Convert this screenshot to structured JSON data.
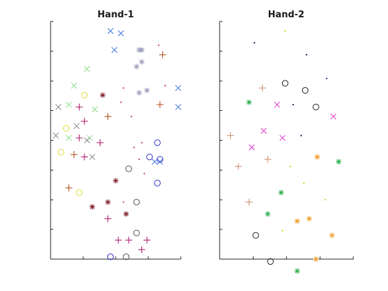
{
  "chart_data": [
    {
      "type": "scatter",
      "title": "Hand-1",
      "xlabel": "",
      "ylabel": "",
      "xlim": [
        0,
        10
      ],
      "ylim": [
        0,
        10
      ],
      "grid": false,
      "series": [
        {
          "marker": "x",
          "color": "#4477dd",
          "points": [
            [
              4.6,
              9.6
            ],
            [
              5.4,
              9.5
            ],
            [
              4.9,
              8.8
            ],
            [
              9.8,
              7.2
            ],
            [
              9.8,
              6.4
            ],
            [
              8.0,
              4.1
            ],
            [
              8.4,
              4.1
            ]
          ]
        },
        {
          "marker": "*",
          "color": "#9999bb",
          "points": [
            [
              6.8,
              8.8
            ],
            [
              7.0,
              8.8
            ],
            [
              6.6,
              8.1
            ],
            [
              7.0,
              8.3
            ],
            [
              6.8,
              7.0
            ],
            [
              7.4,
              7.1
            ]
          ]
        },
        {
          "marker": "*",
          "color": "#7a1020",
          "points": [
            [
              4.0,
              6.9
            ],
            [
              5.0,
              3.3
            ],
            [
              4.4,
              2.4
            ],
            [
              5.8,
              1.9
            ],
            [
              3.2,
              2.2
            ]
          ]
        },
        {
          "marker": "x",
          "color": "#88dd88",
          "points": [
            [
              2.8,
              8.0
            ],
            [
              1.8,
              7.3
            ],
            [
              1.4,
              6.5
            ],
            [
              3.4,
              6.3
            ],
            [
              1.4,
              5.1
            ],
            [
              3.0,
              5.1
            ]
          ]
        },
        {
          "marker": "x",
          "color": "#888888",
          "points": [
            [
              0.6,
              6.4
            ],
            [
              2.0,
              5.6
            ],
            [
              0.4,
              5.2
            ],
            [
              2.8,
              5.0
            ],
            [
              3.2,
              4.3
            ]
          ]
        },
        {
          "marker": "+",
          "color": "#aa1166",
          "points": [
            [
              2.2,
              6.4
            ],
            [
              2.6,
              5.8
            ],
            [
              2.2,
              5.1
            ],
            [
              3.8,
              4.9
            ],
            [
              2.6,
              4.3
            ],
            [
              4.4,
              1.7
            ],
            [
              5.2,
              0.8
            ],
            [
              6.0,
              0.8
            ],
            [
              7.4,
              0.8
            ],
            [
              7.0,
              0.4
            ]
          ]
        },
        {
          "marker": "+",
          "color": "#aa4411",
          "points": [
            [
              8.6,
              8.6
            ],
            [
              8.4,
              6.5
            ],
            [
              4.4,
              6.0
            ],
            [
              1.8,
              4.4
            ],
            [
              1.4,
              3.0
            ]
          ]
        },
        {
          "marker": "o",
          "color": "#dddd33",
          "points": [
            [
              2.6,
              6.9
            ],
            [
              1.2,
              5.5
            ],
            [
              0.8,
              4.5
            ],
            [
              2.2,
              2.8
            ]
          ]
        },
        {
          "marker": "o",
          "color": "#3333cc",
          "points": [
            [
              8.2,
              4.9
            ],
            [
              7.6,
              4.3
            ],
            [
              8.4,
              4.2
            ],
            [
              8.2,
              3.2
            ],
            [
              4.6,
              0.1
            ]
          ]
        },
        {
          "marker": "o",
          "color": "#555555",
          "points": [
            [
              6.0,
              3.8
            ],
            [
              6.6,
              2.4
            ],
            [
              6.6,
              1.1
            ],
            [
              5.8,
              0.1
            ]
          ]
        },
        {
          "marker": ".",
          "color": "#cc3366",
          "points": [
            [
              5.6,
              7.2
            ],
            [
              5.4,
              6.6
            ],
            [
              6.2,
              6.0
            ],
            [
              6.4,
              4.7
            ],
            [
              7.0,
              4.9
            ],
            [
              6.8,
              4.2
            ],
            [
              7.2,
              3.6
            ],
            [
              5.6,
              2.4
            ],
            [
              8.8,
              7.3
            ],
            [
              8.3,
              9.0
            ]
          ]
        }
      ]
    },
    {
      "type": "scatter",
      "title": "Hand-2",
      "xlabel": "",
      "ylabel": "",
      "xlim": [
        0,
        10
      ],
      "ylim": [
        0,
        10
      ],
      "grid": false,
      "series": [
        {
          "marker": ".",
          "color": "#14145c",
          "points": [
            [
              2.6,
              9.1
            ],
            [
              6.5,
              8.6
            ],
            [
              8.0,
              7.6
            ],
            [
              5.5,
              6.5
            ],
            [
              6.1,
              5.2
            ]
          ]
        },
        {
          "marker": ".",
          "color": "#cccc22",
          "points": [
            [
              4.9,
              9.6
            ],
            [
              5.3,
              3.9
            ],
            [
              6.3,
              3.2
            ],
            [
              7.9,
              2.5
            ],
            [
              4.7,
              1.2
            ]
          ]
        },
        {
          "marker": "o",
          "color": "#222222",
          "points": [
            [
              4.9,
              7.4
            ],
            [
              6.4,
              7.1
            ],
            [
              7.2,
              6.4
            ],
            [
              2.7,
              1.0
            ],
            [
              3.8,
              -0.1
            ]
          ]
        },
        {
          "marker": "+",
          "color": "#cc8866",
          "points": [
            [
              3.2,
              7.2
            ],
            [
              0.8,
              5.2
            ],
            [
              1.4,
              3.9
            ],
            [
              3.6,
              4.2
            ],
            [
              2.2,
              2.4
            ]
          ]
        },
        {
          "marker": "x",
          "color": "#dd33cc",
          "points": [
            [
              4.3,
              6.5
            ],
            [
              3.3,
              5.4
            ],
            [
              4.7,
              5.1
            ],
            [
              8.5,
              6.0
            ],
            [
              2.4,
              4.7
            ]
          ]
        },
        {
          "marker": "*",
          "color": "#22aa44",
          "points": [
            [
              2.2,
              6.6
            ],
            [
              8.9,
              4.1
            ],
            [
              4.6,
              2.8
            ],
            [
              3.6,
              1.9
            ],
            [
              5.8,
              -0.5
            ]
          ]
        },
        {
          "marker": "*",
          "color": "#ee9922",
          "points": [
            [
              7.3,
              4.3
            ],
            [
              5.8,
              1.6
            ],
            [
              6.7,
              1.7
            ],
            [
              8.4,
              1.0
            ],
            [
              7.2,
              0.0
            ]
          ]
        }
      ]
    }
  ]
}
